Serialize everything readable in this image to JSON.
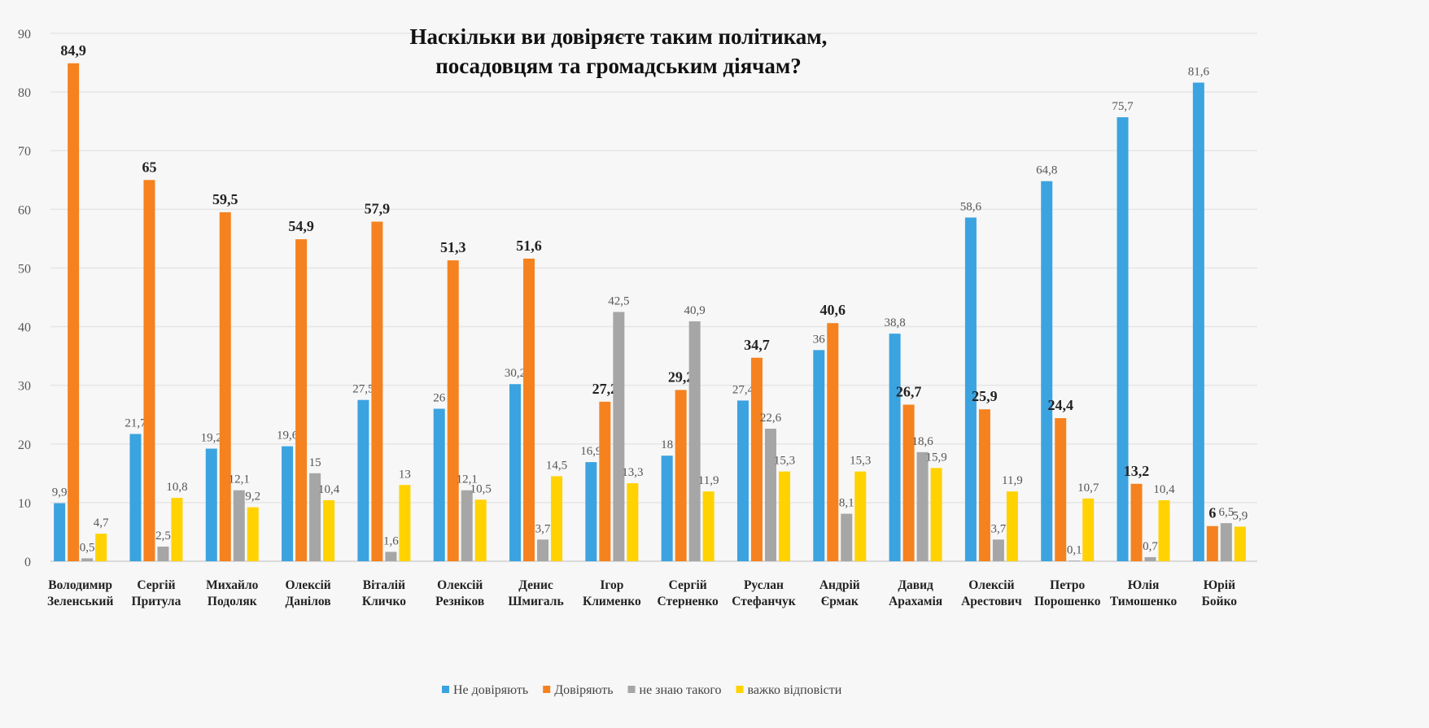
{
  "chart_data": {
    "type": "bar",
    "title": [
      "Наскільки ви довіряєте таким політикам,",
      "посадовцям та громадським діячам?"
    ],
    "xlabel": "",
    "ylabel": "",
    "ylim": [
      0,
      90
    ],
    "yticks": [
      0,
      10,
      20,
      30,
      40,
      50,
      60,
      70,
      80,
      90
    ],
    "grid": true,
    "legend_position": "bottom",
    "categories": [
      [
        "Володимир",
        "Зеленський"
      ],
      [
        "Сергій",
        "Притула"
      ],
      [
        "Михайло",
        "Подоляк"
      ],
      [
        "Олексій",
        "Данілов"
      ],
      [
        "Віталій",
        "Кличко"
      ],
      [
        "Олексій",
        "Резніков"
      ],
      [
        "Денис",
        "Шмигаль"
      ],
      [
        "Ігор",
        "Клименко"
      ],
      [
        "Сергій",
        "Стерненко"
      ],
      [
        "Руслан",
        "Стефанчук"
      ],
      [
        "Андрій",
        "Єрмак"
      ],
      [
        "Давид",
        "Арахамія"
      ],
      [
        "Олексій",
        "Арестович"
      ],
      [
        "Петро",
        "Порошенко"
      ],
      [
        "Юлія",
        "Тимошенко"
      ],
      [
        "Юрій",
        "Бойко"
      ]
    ],
    "series": [
      {
        "name": "Не довіряють",
        "color": "#3ba3e0",
        "values": [
          9.9,
          21.7,
          19.2,
          19.6,
          27.5,
          26,
          30.2,
          16.9,
          18,
          27.4,
          36,
          38.8,
          58.6,
          64.8,
          75.7,
          81.6
        ]
      },
      {
        "name": "Довіряють",
        "color": "#f5821f",
        "values": [
          84.9,
          65,
          59.5,
          54.9,
          57.9,
          51.3,
          51.6,
          27.2,
          29.2,
          34.7,
          40.6,
          26.7,
          25.9,
          24.4,
          13.2,
          6
        ]
      },
      {
        "name": "не знаю такого",
        "color": "#a6a6a6",
        "values": [
          0.5,
          2.5,
          12.1,
          15,
          1.6,
          12.1,
          3.7,
          42.5,
          40.9,
          22.6,
          8.1,
          18.6,
          3.7,
          0.1,
          0.7,
          6.5
        ]
      },
      {
        "name": "важко відповісти",
        "color": "#ffd200",
        "values": [
          4.7,
          10.8,
          9.2,
          10.4,
          13,
          10.5,
          14.5,
          13.3,
          11.9,
          15.3,
          15.3,
          15.9,
          11.9,
          10.7,
          10.4,
          5.9
        ]
      }
    ]
  }
}
